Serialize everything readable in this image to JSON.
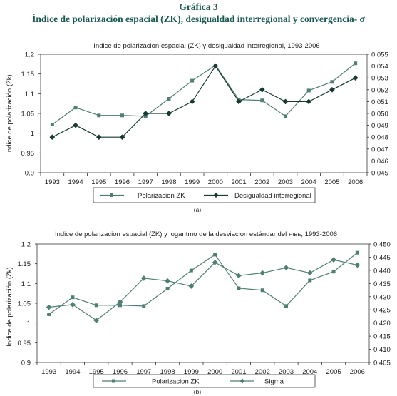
{
  "figure": {
    "title_line1": "Gráfica 3",
    "title_line2": "Índice de polarización espacial (ZK), desigualdad interregional y convergencia- σ"
  },
  "colors": {
    "title": "#1a5a4e",
    "series_a": "#4f7f74",
    "series_b": "#173a32",
    "axis": "#2d2d2d",
    "frame": "#3a3a3a"
  },
  "chart_data": [
    {
      "type": "line",
      "title": "Indice de polarizacion espacial (ZK) y desigualdad interregional, 1993-2006",
      "caption": "(a)",
      "ylabel": "Indice de polarización (Zk)",
      "x": [
        "1993",
        "1994",
        "1995",
        "1996",
        "1997",
        "1998",
        "1999",
        "2000",
        "2001",
        "2002",
        "2003",
        "2004",
        "2005",
        "2006"
      ],
      "left_axis": {
        "ylim": [
          0.9,
          1.2
        ],
        "ticks": [
          "0.9",
          "0.95",
          "1",
          "1.05",
          "1.1",
          "1.15",
          "1.2"
        ]
      },
      "right_axis": {
        "ylim": [
          0.045,
          0.055
        ],
        "ticks": [
          "0.045",
          "0.046",
          "0.047",
          "0.048",
          "0.049",
          "0.050",
          "0.051",
          "0.052",
          "0.053",
          "0.054",
          "0.055"
        ]
      },
      "legend_position": "bottom",
      "series": [
        {
          "name": "Polarizacion ZK",
          "axis": "left",
          "marker": "square",
          "values": [
            1.022,
            1.065,
            1.045,
            1.045,
            1.043,
            1.087,
            1.133,
            1.172,
            1.085,
            1.083,
            1.043,
            1.108,
            1.13,
            1.177
          ]
        },
        {
          "name": "Desigualdad interregional",
          "axis": "right",
          "marker": "diamond",
          "values": [
            0.048,
            0.049,
            0.048,
            0.048,
            0.05,
            0.05,
            0.051,
            0.054,
            0.051,
            0.052,
            0.051,
            0.051,
            0.052,
            0.053
          ]
        }
      ]
    },
    {
      "type": "line",
      "title_main": "Indice de polarizacion espacial (ZK) y logaritmo de la desviacion estándar del",
      "title_pibe": "PIBE",
      "title_tail": ", 1993-2006",
      "caption": "(b)",
      "ylabel": "Indice de polarización (Zk)",
      "x": [
        "1993",
        "1994",
        "1995",
        "1996",
        "1997",
        "1998",
        "1999",
        "2000",
        "2001",
        "2002",
        "2003",
        "2004",
        "2005",
        "2006"
      ],
      "left_axis": {
        "ylim": [
          0.9,
          1.2
        ],
        "ticks": [
          "0.9",
          "0.95",
          "1",
          "1.05",
          "1.1",
          "1.15",
          "1.2"
        ]
      },
      "right_axis": {
        "ylim": [
          0.405,
          0.45
        ],
        "ticks": [
          "0.405",
          "0.410",
          "0.415",
          "0.420",
          "0.425",
          "0.430",
          "0.435",
          "0.440",
          "0.445",
          "0.450"
        ]
      },
      "legend_position": "bottom",
      "series": [
        {
          "name": "Polarizacion ZK",
          "axis": "left",
          "marker": "square",
          "values": [
            1.022,
            1.065,
            1.045,
            1.045,
            1.043,
            1.087,
            1.133,
            1.173,
            1.088,
            1.083,
            1.043,
            1.108,
            1.13,
            1.178
          ]
        },
        {
          "name": "Sigma",
          "axis": "right",
          "marker": "diamond",
          "values": [
            0.426,
            0.427,
            0.421,
            0.428,
            0.437,
            0.436,
            0.434,
            0.443,
            0.438,
            0.439,
            0.441,
            0.439,
            0.444,
            0.442
          ]
        }
      ]
    }
  ]
}
